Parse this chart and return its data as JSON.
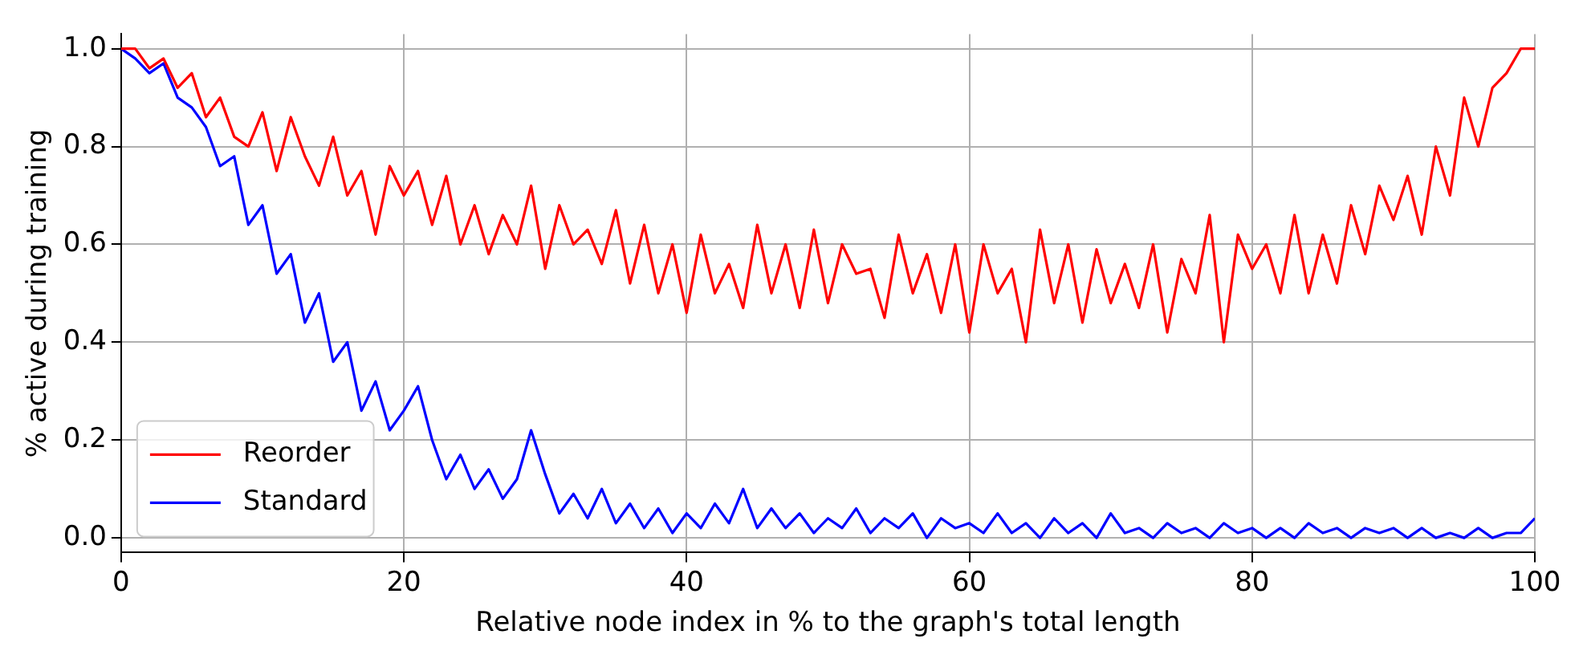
{
  "chart_data": {
    "type": "line",
    "xlabel": "Relative node index in % to the graph's total length",
    "ylabel": "% active during training",
    "x": [
      0,
      1,
      2,
      3,
      4,
      5,
      6,
      7,
      8,
      9,
      10,
      11,
      12,
      13,
      14,
      15,
      16,
      17,
      18,
      19,
      20,
      21,
      22,
      23,
      24,
      25,
      26,
      27,
      28,
      29,
      30,
      31,
      32,
      33,
      34,
      35,
      36,
      37,
      38,
      39,
      40,
      41,
      42,
      43,
      44,
      45,
      46,
      47,
      48,
      49,
      50,
      51,
      52,
      53,
      54,
      55,
      56,
      57,
      58,
      59,
      60,
      61,
      62,
      63,
      64,
      65,
      66,
      67,
      68,
      69,
      70,
      71,
      72,
      73,
      74,
      75,
      76,
      77,
      78,
      79,
      80,
      81,
      82,
      83,
      84,
      85,
      86,
      87,
      88,
      89,
      90,
      91,
      92,
      93,
      94,
      95,
      96,
      97,
      98,
      99,
      100
    ],
    "series": [
      {
        "name": "Reorder",
        "color": "#ff0000",
        "values": [
          1.0,
          1.0,
          0.96,
          0.98,
          0.92,
          0.95,
          0.86,
          0.9,
          0.82,
          0.8,
          0.87,
          0.75,
          0.86,
          0.78,
          0.72,
          0.82,
          0.7,
          0.75,
          0.62,
          0.76,
          0.7,
          0.75,
          0.64,
          0.74,
          0.6,
          0.68,
          0.58,
          0.66,
          0.6,
          0.72,
          0.55,
          0.68,
          0.6,
          0.63,
          0.56,
          0.67,
          0.52,
          0.64,
          0.5,
          0.6,
          0.46,
          0.62,
          0.5,
          0.56,
          0.47,
          0.64,
          0.5,
          0.6,
          0.47,
          0.63,
          0.48,
          0.6,
          0.54,
          0.55,
          0.45,
          0.62,
          0.5,
          0.58,
          0.46,
          0.6,
          0.42,
          0.6,
          0.5,
          0.55,
          0.4,
          0.63,
          0.48,
          0.6,
          0.44,
          0.59,
          0.48,
          0.56,
          0.47,
          0.6,
          0.42,
          0.57,
          0.5,
          0.66,
          0.4,
          0.62,
          0.55,
          0.6,
          0.5,
          0.66,
          0.5,
          0.62,
          0.52,
          0.68,
          0.58,
          0.72,
          0.65,
          0.74,
          0.62,
          0.8,
          0.7,
          0.9,
          0.8,
          0.92,
          0.95,
          1.0,
          1.0
        ]
      },
      {
        "name": "Standard",
        "color": "#0000ff",
        "values": [
          1.0,
          0.98,
          0.95,
          0.97,
          0.9,
          0.88,
          0.84,
          0.76,
          0.78,
          0.64,
          0.68,
          0.54,
          0.58,
          0.44,
          0.5,
          0.36,
          0.4,
          0.26,
          0.32,
          0.22,
          0.26,
          0.31,
          0.2,
          0.12,
          0.17,
          0.1,
          0.14,
          0.08,
          0.12,
          0.22,
          0.13,
          0.05,
          0.09,
          0.04,
          0.1,
          0.03,
          0.07,
          0.02,
          0.06,
          0.01,
          0.05,
          0.02,
          0.07,
          0.03,
          0.1,
          0.02,
          0.06,
          0.02,
          0.05,
          0.01,
          0.04,
          0.02,
          0.06,
          0.01,
          0.04,
          0.02,
          0.05,
          0.0,
          0.04,
          0.02,
          0.03,
          0.01,
          0.05,
          0.01,
          0.03,
          0.0,
          0.04,
          0.01,
          0.03,
          0.0,
          0.05,
          0.01,
          0.02,
          0.0,
          0.03,
          0.01,
          0.02,
          0.0,
          0.03,
          0.01,
          0.02,
          0.0,
          0.02,
          0.0,
          0.03,
          0.01,
          0.02,
          0.0,
          0.02,
          0.01,
          0.02,
          0.0,
          0.02,
          0.0,
          0.01,
          0.0,
          0.02,
          0.0,
          0.01,
          0.01,
          0.04
        ]
      }
    ],
    "xlim": [
      0,
      100
    ],
    "xticks": [
      0,
      20,
      40,
      60,
      80,
      100
    ],
    "ylim": [
      -0.03,
      1.03
    ],
    "yticks": [
      {
        "value": 0,
        "label": "0.0"
      },
      {
        "value": 0.2,
        "label": "0.2"
      },
      {
        "value": 0.4,
        "label": "0.4"
      },
      {
        "value": 0.6,
        "label": "0.6"
      },
      {
        "value": 0.8,
        "label": "0.8"
      },
      {
        "value": 1,
        "label": "1.0"
      }
    ],
    "grid": true,
    "legend": "bottom left"
  }
}
